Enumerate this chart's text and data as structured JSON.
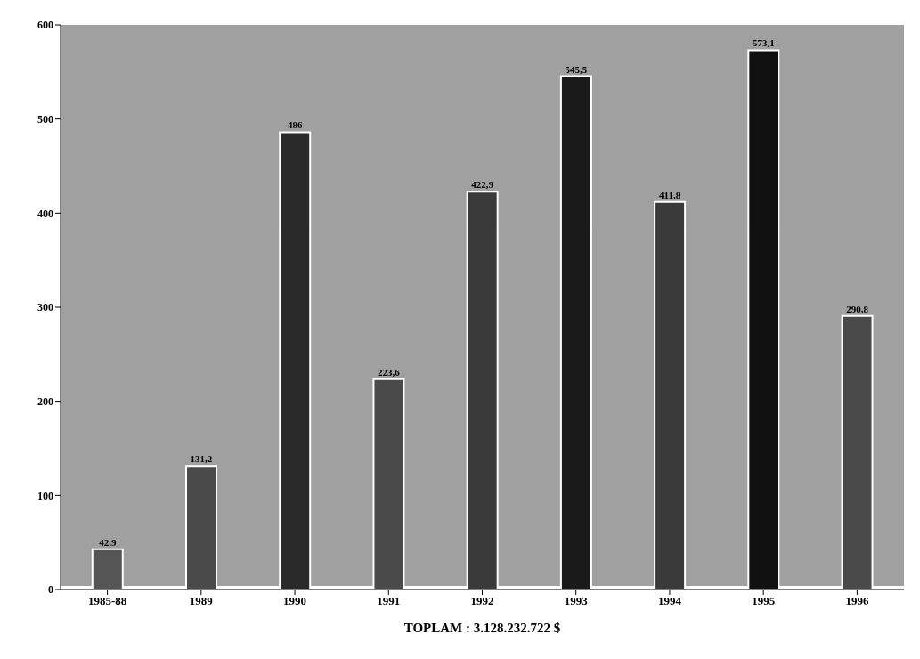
{
  "chart_data": {
    "type": "bar",
    "xlabel": "TOPLAM : 3.128.232.722 $",
    "categories": [
      "1985-88",
      "1989",
      "1990",
      "1991",
      "1992",
      "1993",
      "1994",
      "1995",
      "1996"
    ],
    "values": [
      42.9,
      131.2,
      486,
      223.6,
      422.9,
      545.5,
      411.8,
      573.1,
      290.8
    ],
    "value_labels": [
      "42,9",
      "131,2",
      "486",
      "223,6",
      "422,9",
      "545,5",
      "411,8",
      "573,1",
      "290,8"
    ],
    "colors": [
      "#555555",
      "#4a4a4a",
      "#2a2a2a",
      "#4a4a4a",
      "#3a3a3a",
      "#1a1a1a",
      "#3a3a3a",
      "#111111",
      "#4a4a4a"
    ],
    "ylim": [
      0,
      600
    ],
    "yticks": [
      0,
      100,
      200,
      300,
      400,
      500,
      600
    ],
    "grid": false,
    "legend": false
  }
}
